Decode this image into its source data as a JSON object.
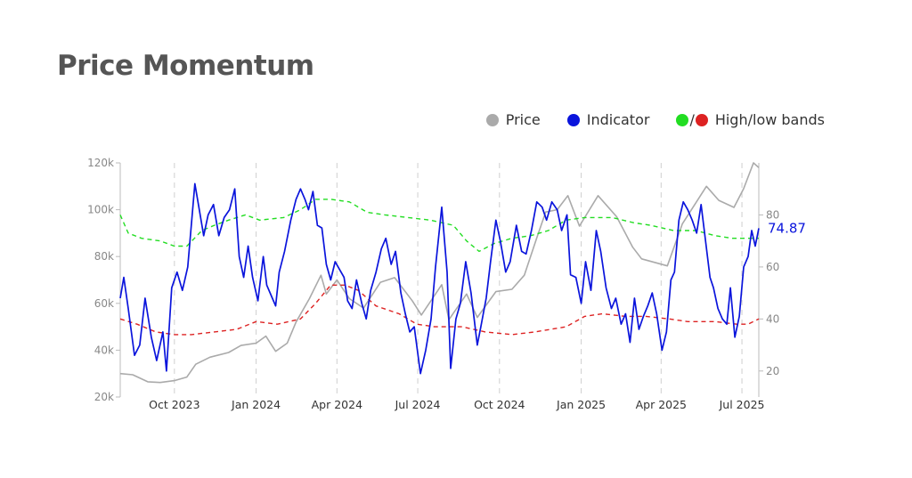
{
  "title": "Price Momentum",
  "legend": {
    "price": "Price",
    "indicator": "Indicator",
    "bands_sep": "/",
    "bands": "High/low bands"
  },
  "colors": {
    "price": "#aaaaaa",
    "indicator": "#0a14dc",
    "high_band": "#22dd22",
    "low_band": "#dd2222",
    "title": "#555555"
  },
  "chart_data": {
    "type": "line",
    "x_ticks": [
      "Oct 2023",
      "Jan 2024",
      "Apr 2024",
      "Jul 2024",
      "Oct 2024",
      "Jan 2025",
      "Apr 2025",
      "Jul 2025"
    ],
    "x_tick_dates": [
      "2023-10-01",
      "2024-01-01",
      "2024-04-01",
      "2024-07-01",
      "2024-10-01",
      "2025-01-01",
      "2025-04-01",
      "2025-07-01"
    ],
    "x_range": [
      "2023-08-01",
      "2025-07-20"
    ],
    "left_axis": {
      "ticks": [
        "20k",
        "40k",
        "60k",
        "80k",
        "100k",
        "120k"
      ],
      "tick_values": [
        20000,
        40000,
        60000,
        80000,
        100000,
        120000
      ],
      "range": [
        20000,
        120000
      ]
    },
    "right_axis": {
      "ticks": [
        "20",
        "40",
        "60",
        "80"
      ],
      "tick_values": [
        20,
        40,
        60,
        80
      ],
      "range": [
        10,
        100
      ]
    },
    "end_label": "74.87",
    "grid": "vertical dashed at quarter starts",
    "legend_position": "top-right",
    "series": [
      {
        "name": "Price",
        "axis": "left",
        "points": [
          [
            "2023-08-01",
            30000
          ],
          [
            "2023-08-15",
            29500
          ],
          [
            "2023-09-01",
            26500
          ],
          [
            "2023-09-15",
            26200
          ],
          [
            "2023-10-01",
            27000
          ],
          [
            "2023-10-15",
            28500
          ],
          [
            "2023-10-25",
            34000
          ],
          [
            "2023-11-10",
            37000
          ],
          [
            "2023-12-01",
            39000
          ],
          [
            "2023-12-15",
            42000
          ],
          [
            "2024-01-01",
            43000
          ],
          [
            "2024-01-12",
            46000
          ],
          [
            "2024-01-23",
            39500
          ],
          [
            "2024-02-05",
            43000
          ],
          [
            "2024-02-15",
            52000
          ],
          [
            "2024-03-01",
            62000
          ],
          [
            "2024-03-14",
            72000
          ],
          [
            "2024-03-20",
            64000
          ],
          [
            "2024-04-01",
            70000
          ],
          [
            "2024-04-15",
            62000
          ],
          [
            "2024-05-01",
            58000
          ],
          [
            "2024-05-20",
            69000
          ],
          [
            "2024-06-05",
            71000
          ],
          [
            "2024-06-25",
            61000
          ],
          [
            "2024-07-05",
            55000
          ],
          [
            "2024-07-28",
            68000
          ],
          [
            "2024-08-05",
            53000
          ],
          [
            "2024-08-25",
            64000
          ],
          [
            "2024-09-06",
            54000
          ],
          [
            "2024-09-27",
            65000
          ],
          [
            "2024-10-15",
            66000
          ],
          [
            "2024-10-29",
            72000
          ],
          [
            "2024-11-12",
            88000
          ],
          [
            "2024-11-22",
            99000
          ],
          [
            "2024-12-05",
            100000
          ],
          [
            "2024-12-17",
            106000
          ],
          [
            "2024-12-30",
            93000
          ],
          [
            "2025-01-20",
            106000
          ],
          [
            "2025-02-10",
            97000
          ],
          [
            "2025-02-28",
            84000
          ],
          [
            "2025-03-10",
            79000
          ],
          [
            "2025-04-08",
            76000
          ],
          [
            "2025-04-25",
            94000
          ],
          [
            "2025-05-22",
            110000
          ],
          [
            "2025-06-05",
            104000
          ],
          [
            "2025-06-22",
            101000
          ],
          [
            "2025-07-03",
            109000
          ],
          [
            "2025-07-14",
            120000
          ],
          [
            "2025-07-20",
            118000
          ]
        ]
      },
      {
        "name": "Indicator",
        "axis": "right",
        "points": [
          [
            "2023-08-01",
            48
          ],
          [
            "2023-08-05",
            56
          ],
          [
            "2023-08-10",
            44
          ],
          [
            "2023-08-17",
            26
          ],
          [
            "2023-08-23",
            30
          ],
          [
            "2023-08-29",
            48
          ],
          [
            "2023-09-05",
            33
          ],
          [
            "2023-09-11",
            24
          ],
          [
            "2023-09-18",
            35
          ],
          [
            "2023-09-22",
            20
          ],
          [
            "2023-09-28",
            52
          ],
          [
            "2023-10-04",
            58
          ],
          [
            "2023-10-10",
            51
          ],
          [
            "2023-10-16",
            60
          ],
          [
            "2023-10-20",
            76
          ],
          [
            "2023-10-24",
            92
          ],
          [
            "2023-10-28",
            84
          ],
          [
            "2023-11-03",
            72
          ],
          [
            "2023-11-08",
            80
          ],
          [
            "2023-11-14",
            84
          ],
          [
            "2023-11-20",
            72
          ],
          [
            "2023-11-26",
            79
          ],
          [
            "2023-12-02",
            82
          ],
          [
            "2023-12-08",
            90
          ],
          [
            "2023-12-13",
            64
          ],
          [
            "2023-12-18",
            56
          ],
          [
            "2023-12-23",
            68
          ],
          [
            "2023-12-28",
            56
          ],
          [
            "2024-01-03",
            47
          ],
          [
            "2024-01-09",
            64
          ],
          [
            "2024-01-13",
            53
          ],
          [
            "2024-01-18",
            49
          ],
          [
            "2024-01-23",
            45
          ],
          [
            "2024-01-27",
            58
          ],
          [
            "2024-02-02",
            66
          ],
          [
            "2024-02-09",
            78
          ],
          [
            "2024-02-15",
            86
          ],
          [
            "2024-02-20",
            90
          ],
          [
            "2024-02-25",
            86
          ],
          [
            "2024-02-29",
            82
          ],
          [
            "2024-03-05",
            89
          ],
          [
            "2024-03-10",
            76
          ],
          [
            "2024-03-15",
            75
          ],
          [
            "2024-03-20",
            61
          ],
          [
            "2024-03-25",
            55
          ],
          [
            "2024-03-30",
            62
          ],
          [
            "2024-04-04",
            59
          ],
          [
            "2024-04-09",
            56
          ],
          [
            "2024-04-13",
            47
          ],
          [
            "2024-04-18",
            44
          ],
          [
            "2024-04-23",
            55
          ],
          [
            "2024-04-29",
            46
          ],
          [
            "2024-05-04",
            40
          ],
          [
            "2024-05-09",
            51
          ],
          [
            "2024-05-15",
            58
          ],
          [
            "2024-05-21",
            67
          ],
          [
            "2024-05-26",
            71
          ],
          [
            "2024-06-01",
            61
          ],
          [
            "2024-06-06",
            66
          ],
          [
            "2024-06-12",
            50
          ],
          [
            "2024-06-17",
            42
          ],
          [
            "2024-06-22",
            35
          ],
          [
            "2024-06-27",
            37
          ],
          [
            "2024-07-04",
            19
          ],
          [
            "2024-07-10",
            28
          ],
          [
            "2024-07-16",
            40
          ],
          [
            "2024-07-21",
            60
          ],
          [
            "2024-07-28",
            83
          ],
          [
            "2024-08-03",
            58
          ],
          [
            "2024-08-07",
            21
          ],
          [
            "2024-08-13",
            40
          ],
          [
            "2024-08-18",
            46
          ],
          [
            "2024-08-24",
            62
          ],
          [
            "2024-08-30",
            50
          ],
          [
            "2024-09-06",
            30
          ],
          [
            "2024-09-10",
            37
          ],
          [
            "2024-09-16",
            48
          ],
          [
            "2024-09-21",
            62
          ],
          [
            "2024-09-27",
            78
          ],
          [
            "2024-10-02",
            70
          ],
          [
            "2024-10-08",
            58
          ],
          [
            "2024-10-13",
            62
          ],
          [
            "2024-10-20",
            76
          ],
          [
            "2024-10-26",
            66
          ],
          [
            "2024-10-31",
            65
          ],
          [
            "2024-11-06",
            74
          ],
          [
            "2024-11-12",
            85
          ],
          [
            "2024-11-18",
            83
          ],
          [
            "2024-11-23",
            78
          ],
          [
            "2024-11-29",
            85
          ],
          [
            "2024-12-05",
            82
          ],
          [
            "2024-12-10",
            74
          ],
          [
            "2024-12-16",
            80
          ],
          [
            "2024-12-20",
            57
          ],
          [
            "2024-12-26",
            56
          ],
          [
            "2025-01-01",
            46
          ],
          [
            "2025-01-06",
            62
          ],
          [
            "2025-01-12",
            51
          ],
          [
            "2025-01-18",
            74
          ],
          [
            "2025-01-23",
            66
          ],
          [
            "2025-01-29",
            52
          ],
          [
            "2025-02-04",
            44
          ],
          [
            "2025-02-09",
            48
          ],
          [
            "2025-02-15",
            38
          ],
          [
            "2025-02-20",
            42
          ],
          [
            "2025-02-25",
            31
          ],
          [
            "2025-03-02",
            48
          ],
          [
            "2025-03-07",
            36
          ],
          [
            "2025-03-12",
            41
          ],
          [
            "2025-03-17",
            45
          ],
          [
            "2025-03-22",
            50
          ],
          [
            "2025-03-27",
            42
          ],
          [
            "2025-04-02",
            28
          ],
          [
            "2025-04-07",
            35
          ],
          [
            "2025-04-12",
            55
          ],
          [
            "2025-04-16",
            58
          ],
          [
            "2025-04-21",
            78
          ],
          [
            "2025-04-26",
            85
          ],
          [
            "2025-05-01",
            82
          ],
          [
            "2025-05-06",
            78
          ],
          [
            "2025-05-11",
            73
          ],
          [
            "2025-05-16",
            84
          ],
          [
            "2025-05-21",
            70
          ],
          [
            "2025-05-26",
            56
          ],
          [
            "2025-05-30",
            52
          ],
          [
            "2025-06-04",
            44
          ],
          [
            "2025-06-09",
            40
          ],
          [
            "2025-06-14",
            38
          ],
          [
            "2025-06-18",
            52
          ],
          [
            "2025-06-23",
            33
          ],
          [
            "2025-06-28",
            41
          ],
          [
            "2025-07-03",
            60
          ],
          [
            "2025-07-08",
            64
          ],
          [
            "2025-07-12",
            74
          ],
          [
            "2025-07-16",
            68
          ],
          [
            "2025-07-20",
            74.87
          ]
        ]
      },
      {
        "name": "High band",
        "axis": "right",
        "points": [
          [
            "2023-08-01",
            80
          ],
          [
            "2023-08-10",
            73
          ],
          [
            "2023-08-25",
            71
          ],
          [
            "2023-09-15",
            70
          ],
          [
            "2023-10-01",
            68
          ],
          [
            "2023-10-15",
            68
          ],
          [
            "2023-11-01",
            74
          ],
          [
            "2023-11-15",
            76
          ],
          [
            "2023-12-01",
            78
          ],
          [
            "2023-12-20",
            80
          ],
          [
            "2024-01-05",
            78
          ],
          [
            "2024-02-01",
            79
          ],
          [
            "2024-02-20",
            82
          ],
          [
            "2024-03-08",
            86
          ],
          [
            "2024-03-25",
            86
          ],
          [
            "2024-04-15",
            85
          ],
          [
            "2024-05-05",
            81
          ],
          [
            "2024-05-25",
            80
          ],
          [
            "2024-06-20",
            79
          ],
          [
            "2024-07-15",
            78
          ],
          [
            "2024-08-10",
            76
          ],
          [
            "2024-08-25",
            70
          ],
          [
            "2024-09-08",
            66
          ],
          [
            "2024-09-25",
            69
          ],
          [
            "2024-10-15",
            71
          ],
          [
            "2024-11-05",
            72
          ],
          [
            "2024-11-25",
            74
          ],
          [
            "2024-12-15",
            78
          ],
          [
            "2025-01-05",
            79
          ],
          [
            "2025-02-05",
            79
          ],
          [
            "2025-03-01",
            77
          ],
          [
            "2025-03-20",
            76
          ],
          [
            "2025-04-15",
            74
          ],
          [
            "2025-05-10",
            74
          ],
          [
            "2025-06-01",
            72
          ],
          [
            "2025-06-20",
            71
          ],
          [
            "2025-07-20",
            71
          ]
        ]
      },
      {
        "name": "Low band",
        "axis": "right",
        "points": [
          [
            "2023-08-01",
            40
          ],
          [
            "2023-08-20",
            38
          ],
          [
            "2023-09-10",
            35
          ],
          [
            "2023-10-01",
            34
          ],
          [
            "2023-10-20",
            34
          ],
          [
            "2023-11-15",
            35
          ],
          [
            "2023-12-10",
            36
          ],
          [
            "2024-01-01",
            39
          ],
          [
            "2024-01-25",
            38
          ],
          [
            "2024-02-20",
            40
          ],
          [
            "2024-03-08",
            46
          ],
          [
            "2024-03-25",
            53
          ],
          [
            "2024-04-10",
            53
          ],
          [
            "2024-04-25",
            51
          ],
          [
            "2024-05-15",
            45
          ],
          [
            "2024-06-10",
            42
          ],
          [
            "2024-06-30",
            38
          ],
          [
            "2024-07-20",
            37
          ],
          [
            "2024-08-20",
            37
          ],
          [
            "2024-09-15",
            35
          ],
          [
            "2024-10-15",
            34
          ],
          [
            "2024-11-10",
            35
          ],
          [
            "2024-12-15",
            37
          ],
          [
            "2025-01-05",
            41
          ],
          [
            "2025-01-25",
            42
          ],
          [
            "2025-02-20",
            41
          ],
          [
            "2025-03-15",
            41
          ],
          [
            "2025-04-10",
            40
          ],
          [
            "2025-05-01",
            39
          ],
          [
            "2025-06-01",
            39
          ],
          [
            "2025-06-25",
            38
          ],
          [
            "2025-07-08",
            38
          ],
          [
            "2025-07-20",
            40
          ]
        ]
      }
    ]
  }
}
